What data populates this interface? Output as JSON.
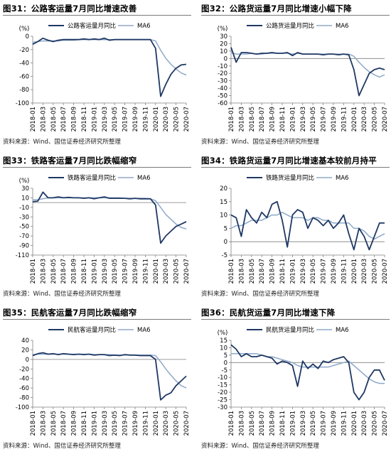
{
  "colors": {
    "dark": "#1f3864",
    "light": "#8fa9c9",
    "axis": "#7f7f7f",
    "rule": "#7a7a7a"
  },
  "source_text": "资料来源：Wind、国信证券经济研究所整理",
  "unit_label": "(%)",
  "x_tick_labels": [
    "2018-01",
    "2018-03",
    "2018-05",
    "2018-07",
    "2018-09",
    "2018-11",
    "2019-01",
    "2019-03",
    "2019-05",
    "2019-07",
    "2019-09",
    "2019-11",
    "2020-01",
    "2020-03",
    "2020-05",
    "2020-07"
  ],
  "chart_data": [
    {
      "type": "line",
      "title": "图31：公路客运量7月同比增速改善",
      "unit": "(%)",
      "ylim": [
        -100,
        0
      ],
      "yticks": [
        0,
        -20,
        -40,
        -60,
        -80,
        -100
      ],
      "legend_placement": "top",
      "x": [
        "2018-01",
        "2018-02",
        "2018-03",
        "2018-04",
        "2018-05",
        "2018-06",
        "2018-07",
        "2018-08",
        "2018-09",
        "2018-10",
        "2018-11",
        "2018-12",
        "2019-01",
        "2019-02",
        "2019-03",
        "2019-04",
        "2019-05",
        "2019-06",
        "2019-07",
        "2019-08",
        "2019-09",
        "2019-10",
        "2019-11",
        "2019-12",
        "2020-01",
        "2020-02",
        "2020-03",
        "2020-04",
        "2020-05",
        "2020-06",
        "2020-07"
      ],
      "series": [
        {
          "name": "公路客运量月同比",
          "color": "#1f3864",
          "values": [
            -12,
            -8,
            -3,
            -6,
            -8,
            -6,
            -5,
            -5,
            -5,
            -5,
            -4,
            -5,
            -4,
            -5,
            -3,
            -6,
            -5,
            -5,
            -5,
            -5,
            -5,
            -5,
            -5,
            -5,
            -18,
            -90,
            -72,
            -57,
            -48,
            -43,
            -42
          ]
        },
        {
          "name": "MA6",
          "color": "#8fa9c9",
          "values": [
            -9,
            -8,
            -7,
            -7,
            -7,
            -7,
            -6,
            -6,
            -6,
            -5,
            -5,
            -5,
            -5,
            -5,
            -5,
            -5,
            -5,
            -5,
            -5,
            -5,
            -5,
            -5,
            -5,
            -5,
            -7,
            -21,
            -33,
            -42,
            -49,
            -55,
            -58
          ]
        }
      ]
    },
    {
      "type": "line",
      "title": "图32：公路货运量7月同比增速小幅下降",
      "unit": "(%)",
      "ylim": [
        -60,
        30
      ],
      "yticks": [
        30,
        20,
        10,
        0,
        -10,
        -20,
        -30,
        -40,
        -50,
        -60
      ],
      "legend_placement": "top",
      "x": [
        "2018-01",
        "2018-02",
        "2018-03",
        "2018-04",
        "2018-05",
        "2018-06",
        "2018-07",
        "2018-08",
        "2018-09",
        "2018-10",
        "2018-11",
        "2018-12",
        "2019-01",
        "2019-02",
        "2019-03",
        "2019-04",
        "2019-05",
        "2019-06",
        "2019-07",
        "2019-08",
        "2019-09",
        "2019-10",
        "2019-11",
        "2019-12",
        "2020-01",
        "2020-02",
        "2020-03",
        "2020-04",
        "2020-05",
        "2020-06",
        "2020-07"
      ],
      "series": [
        {
          "name": "公路货运量月同比",
          "color": "#1f3864",
          "values": [
            15,
            -5,
            8,
            8,
            7,
            6,
            7,
            7,
            8,
            7,
            7,
            8,
            4,
            8,
            6,
            6,
            6,
            6,
            5,
            6,
            6,
            5,
            6,
            5,
            -15,
            -50,
            -35,
            -20,
            -15,
            -13,
            -15
          ]
        },
        {
          "name": "MA6",
          "color": "#8fa9c9",
          "values": [
            8,
            6,
            6,
            6,
            7,
            6,
            6,
            7,
            7,
            7,
            7,
            7,
            6,
            7,
            6,
            6,
            6,
            6,
            6,
            6,
            6,
            6,
            6,
            6,
            3,
            -5,
            -12,
            -18,
            -22,
            -25,
            -22
          ]
        }
      ]
    },
    {
      "type": "line",
      "title": "图33：铁路客运量7月同比跌幅缩窄",
      "unit": "(%)",
      "ylim": [
        -110,
        30
      ],
      "yticks": [
        30,
        10,
        -10,
        -30,
        -50,
        -70,
        -90,
        -110
      ],
      "legend_placement": "top",
      "x": [
        "2018-01",
        "2018-02",
        "2018-03",
        "2018-04",
        "2018-05",
        "2018-06",
        "2018-07",
        "2018-08",
        "2018-09",
        "2018-10",
        "2018-11",
        "2018-12",
        "2019-01",
        "2019-02",
        "2019-03",
        "2019-04",
        "2019-05",
        "2019-06",
        "2019-07",
        "2019-08",
        "2019-09",
        "2019-10",
        "2019-11",
        "2019-12",
        "2020-01",
        "2020-02",
        "2020-03",
        "2020-04",
        "2020-05",
        "2020-06",
        "2020-07"
      ],
      "series": [
        {
          "name": "铁路客运量月同比",
          "color": "#1f3864",
          "values": [
            2,
            3,
            22,
            10,
            10,
            12,
            10,
            11,
            10,
            10,
            9,
            10,
            8,
            10,
            12,
            9,
            9,
            9,
            9,
            8,
            9,
            8,
            8,
            8,
            -5,
            -85,
            -70,
            -60,
            -50,
            -45,
            -40
          ]
        },
        {
          "name": "MA6",
          "color": "#8fa9c9",
          "values": [
            6,
            6,
            8,
            10,
            10,
            10,
            10,
            10,
            10,
            10,
            10,
            10,
            10,
            10,
            10,
            10,
            10,
            10,
            9,
            9,
            9,
            9,
            9,
            8,
            4,
            -10,
            -25,
            -35,
            -45,
            -52,
            -55
          ]
        }
      ]
    },
    {
      "type": "line",
      "title": "图34：铁路货运量7月同比增速基本较前月持平",
      "unit": "",
      "ylim": [
        -5,
        20
      ],
      "yticks": [
        20,
        15,
        10,
        5,
        0,
        -5
      ],
      "legend_placement": "top",
      "x": [
        "2018-01",
        "2018-02",
        "2018-03",
        "2018-04",
        "2018-05",
        "2018-06",
        "2018-07",
        "2018-08",
        "2018-09",
        "2018-10",
        "2018-11",
        "2018-12",
        "2019-01",
        "2019-02",
        "2019-03",
        "2019-04",
        "2019-05",
        "2019-06",
        "2019-07",
        "2019-08",
        "2019-09",
        "2019-10",
        "2019-11",
        "2019-12",
        "2020-01",
        "2020-02",
        "2020-03",
        "2020-04",
        "2020-05",
        "2020-06",
        "2020-07"
      ],
      "series": [
        {
          "name": "铁路货运量月同比",
          "color": "#1f3864",
          "values": [
            10,
            9,
            2,
            12,
            9,
            7,
            11,
            9,
            14,
            15,
            8,
            -2,
            10,
            12,
            11,
            5,
            9,
            8,
            6,
            8,
            5,
            7,
            10,
            3,
            -3,
            5,
            2,
            -3,
            2,
            7,
            7
          ]
        },
        {
          "name": "MA6",
          "color": "#8fa9c9",
          "values": [
            5,
            6,
            6,
            7,
            8,
            8,
            8,
            9,
            10,
            10,
            11,
            10,
            9,
            9,
            9,
            8,
            9,
            9,
            8,
            8,
            7,
            7,
            7,
            7,
            5,
            5,
            4,
            2,
            1,
            2,
            3
          ]
        }
      ]
    },
    {
      "type": "line",
      "title": "图35：民航客运量7月同比跌幅缩窄",
      "unit": "",
      "ylim": [
        -100,
        40
      ],
      "yticks": [
        40,
        20,
        0,
        -20,
        -40,
        -60,
        -80,
        -100
      ],
      "legend_placement": "top",
      "x": [
        "2018-01",
        "2018-02",
        "2018-03",
        "2018-04",
        "2018-05",
        "2018-06",
        "2018-07",
        "2018-08",
        "2018-09",
        "2018-10",
        "2018-11",
        "2018-12",
        "2019-01",
        "2019-02",
        "2019-03",
        "2019-04",
        "2019-05",
        "2019-06",
        "2019-07",
        "2019-08",
        "2019-09",
        "2019-10",
        "2019-11",
        "2019-12",
        "2020-01",
        "2020-02",
        "2020-03",
        "2020-04",
        "2020-05",
        "2020-06",
        "2020-07"
      ],
      "series": [
        {
          "name": "民航客运量月同比",
          "color": "#1f3864",
          "values": [
            8,
            12,
            14,
            11,
            12,
            10,
            12,
            11,
            10,
            11,
            10,
            11,
            9,
            10,
            10,
            8,
            9,
            8,
            10,
            9,
            9,
            8,
            8,
            8,
            0,
            -85,
            -75,
            -70,
            -55,
            -45,
            -35
          ]
        },
        {
          "name": "MA6",
          "color": "#8fa9c9",
          "values": [
            10,
            11,
            11,
            11,
            11,
            11,
            11,
            11,
            11,
            11,
            11,
            11,
            10,
            10,
            10,
            10,
            9,
            9,
            9,
            9,
            9,
            9,
            9,
            9,
            8,
            -5,
            -20,
            -33,
            -45,
            -55,
            -60
          ]
        }
      ]
    },
    {
      "type": "line",
      "title": "图36：民航货运量7月同比增速下降",
      "unit": "(%)",
      "ylim": [
        -30,
        15
      ],
      "yticks": [
        15,
        10,
        5,
        0,
        -5,
        -10,
        -15,
        -20,
        -25,
        -30
      ],
      "legend_placement": "top",
      "x": [
        "2018-01",
        "2018-02",
        "2018-03",
        "2018-04",
        "2018-05",
        "2018-06",
        "2018-07",
        "2018-08",
        "2018-09",
        "2018-10",
        "2018-11",
        "2018-12",
        "2019-01",
        "2019-02",
        "2019-03",
        "2019-04",
        "2019-05",
        "2019-06",
        "2019-07",
        "2019-08",
        "2019-09",
        "2019-10",
        "2019-11",
        "2019-12",
        "2020-01",
        "2020-02",
        "2020-03",
        "2020-04",
        "2020-05",
        "2020-06",
        "2020-07"
      ],
      "series": [
        {
          "name": "民航货运量月同比",
          "color": "#1f3864",
          "values": [
            12,
            9,
            4,
            6,
            4,
            4,
            5,
            4,
            3,
            -1,
            1,
            0,
            -2,
            -16,
            1,
            -4,
            -1,
            -4,
            1,
            0,
            2,
            3,
            4,
            0,
            -20,
            -25,
            -20,
            -10,
            -5,
            -5,
            -12
          ]
        },
        {
          "name": "MA6",
          "color": "#8fa9c9",
          "values": [
            6,
            6,
            6,
            6,
            6,
            6,
            5,
            4,
            4,
            3,
            2,
            1,
            0,
            -2,
            -3,
            -3,
            -3,
            -3,
            -3,
            -3,
            -2,
            -1,
            0,
            1,
            -2,
            -5,
            -8,
            -11,
            -13,
            -14,
            -14
          ]
        }
      ]
    }
  ]
}
